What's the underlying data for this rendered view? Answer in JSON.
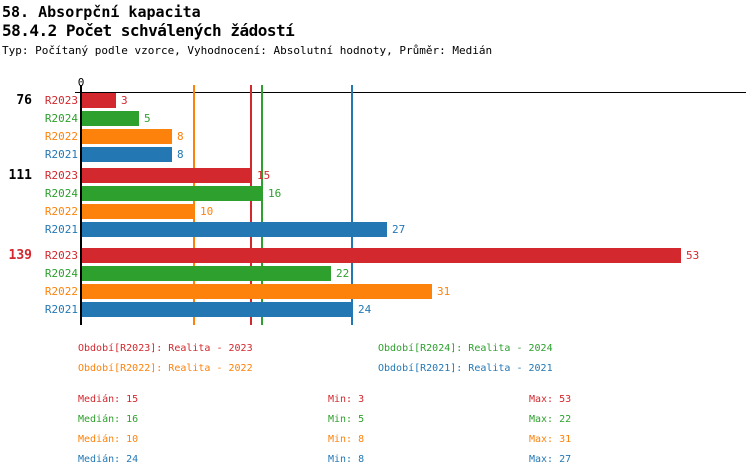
{
  "header": {
    "title": "58. Absorpční kapacita",
    "subtitle": "58.4.2 Počet schválených žádostí",
    "meta": "Typ: Počítaný podle vzorce, Vyhodnocení: Absolutní hodnoty, Průměr: Medián"
  },
  "chart_data": {
    "type": "bar",
    "orientation": "horizontal",
    "title": "58.4.2 Počet schválených žádostí",
    "value_axis": {
      "zero_label": "0",
      "xlim": [
        0,
        59
      ]
    },
    "grid": false,
    "legend_position": "bottom",
    "average_type": "median",
    "series": [
      {
        "id": "R2023",
        "color": "#d2282e",
        "legend": "Období[R2023]: Realita - 2023",
        "median": 15,
        "min": 3,
        "max": 53
      },
      {
        "id": "R2024",
        "color": "#2da02d",
        "legend": "Období[R2024]: Realita - 2024",
        "median": 16,
        "min": 5,
        "max": 22
      },
      {
        "id": "R2022",
        "color": "#fd820b",
        "legend": "Období[R2022]: Realita - 2022",
        "median": 10,
        "min": 8,
        "max": 31
      },
      {
        "id": "R2021",
        "color": "#2378b4",
        "legend": "Období[R2021]: Realita - 2021",
        "median": 24,
        "min": 8,
        "max": 27
      }
    ],
    "groups": [
      {
        "label": "76",
        "label_color": "#000000",
        "values": {
          "R2023": 3,
          "R2024": 5,
          "R2022": 8,
          "R2021": 8
        }
      },
      {
        "label": "111",
        "label_color": "#000000",
        "values": {
          "R2023": 15,
          "R2024": 16,
          "R2022": 10,
          "R2021": 27
        }
      },
      {
        "label": "139",
        "label_color": "#d2282e",
        "values": {
          "R2023": 53,
          "R2024": 22,
          "R2022": 31,
          "R2021": 24
        }
      }
    ],
    "median_lines": [
      {
        "series": "R2022",
        "value": 10
      },
      {
        "series": "R2023",
        "value": 15
      },
      {
        "series": "R2024",
        "value": 16
      },
      {
        "series": "R2021",
        "value": 24
      }
    ],
    "stat_labels": {
      "median": "Medián",
      "min": "Min",
      "max": "Max"
    }
  }
}
